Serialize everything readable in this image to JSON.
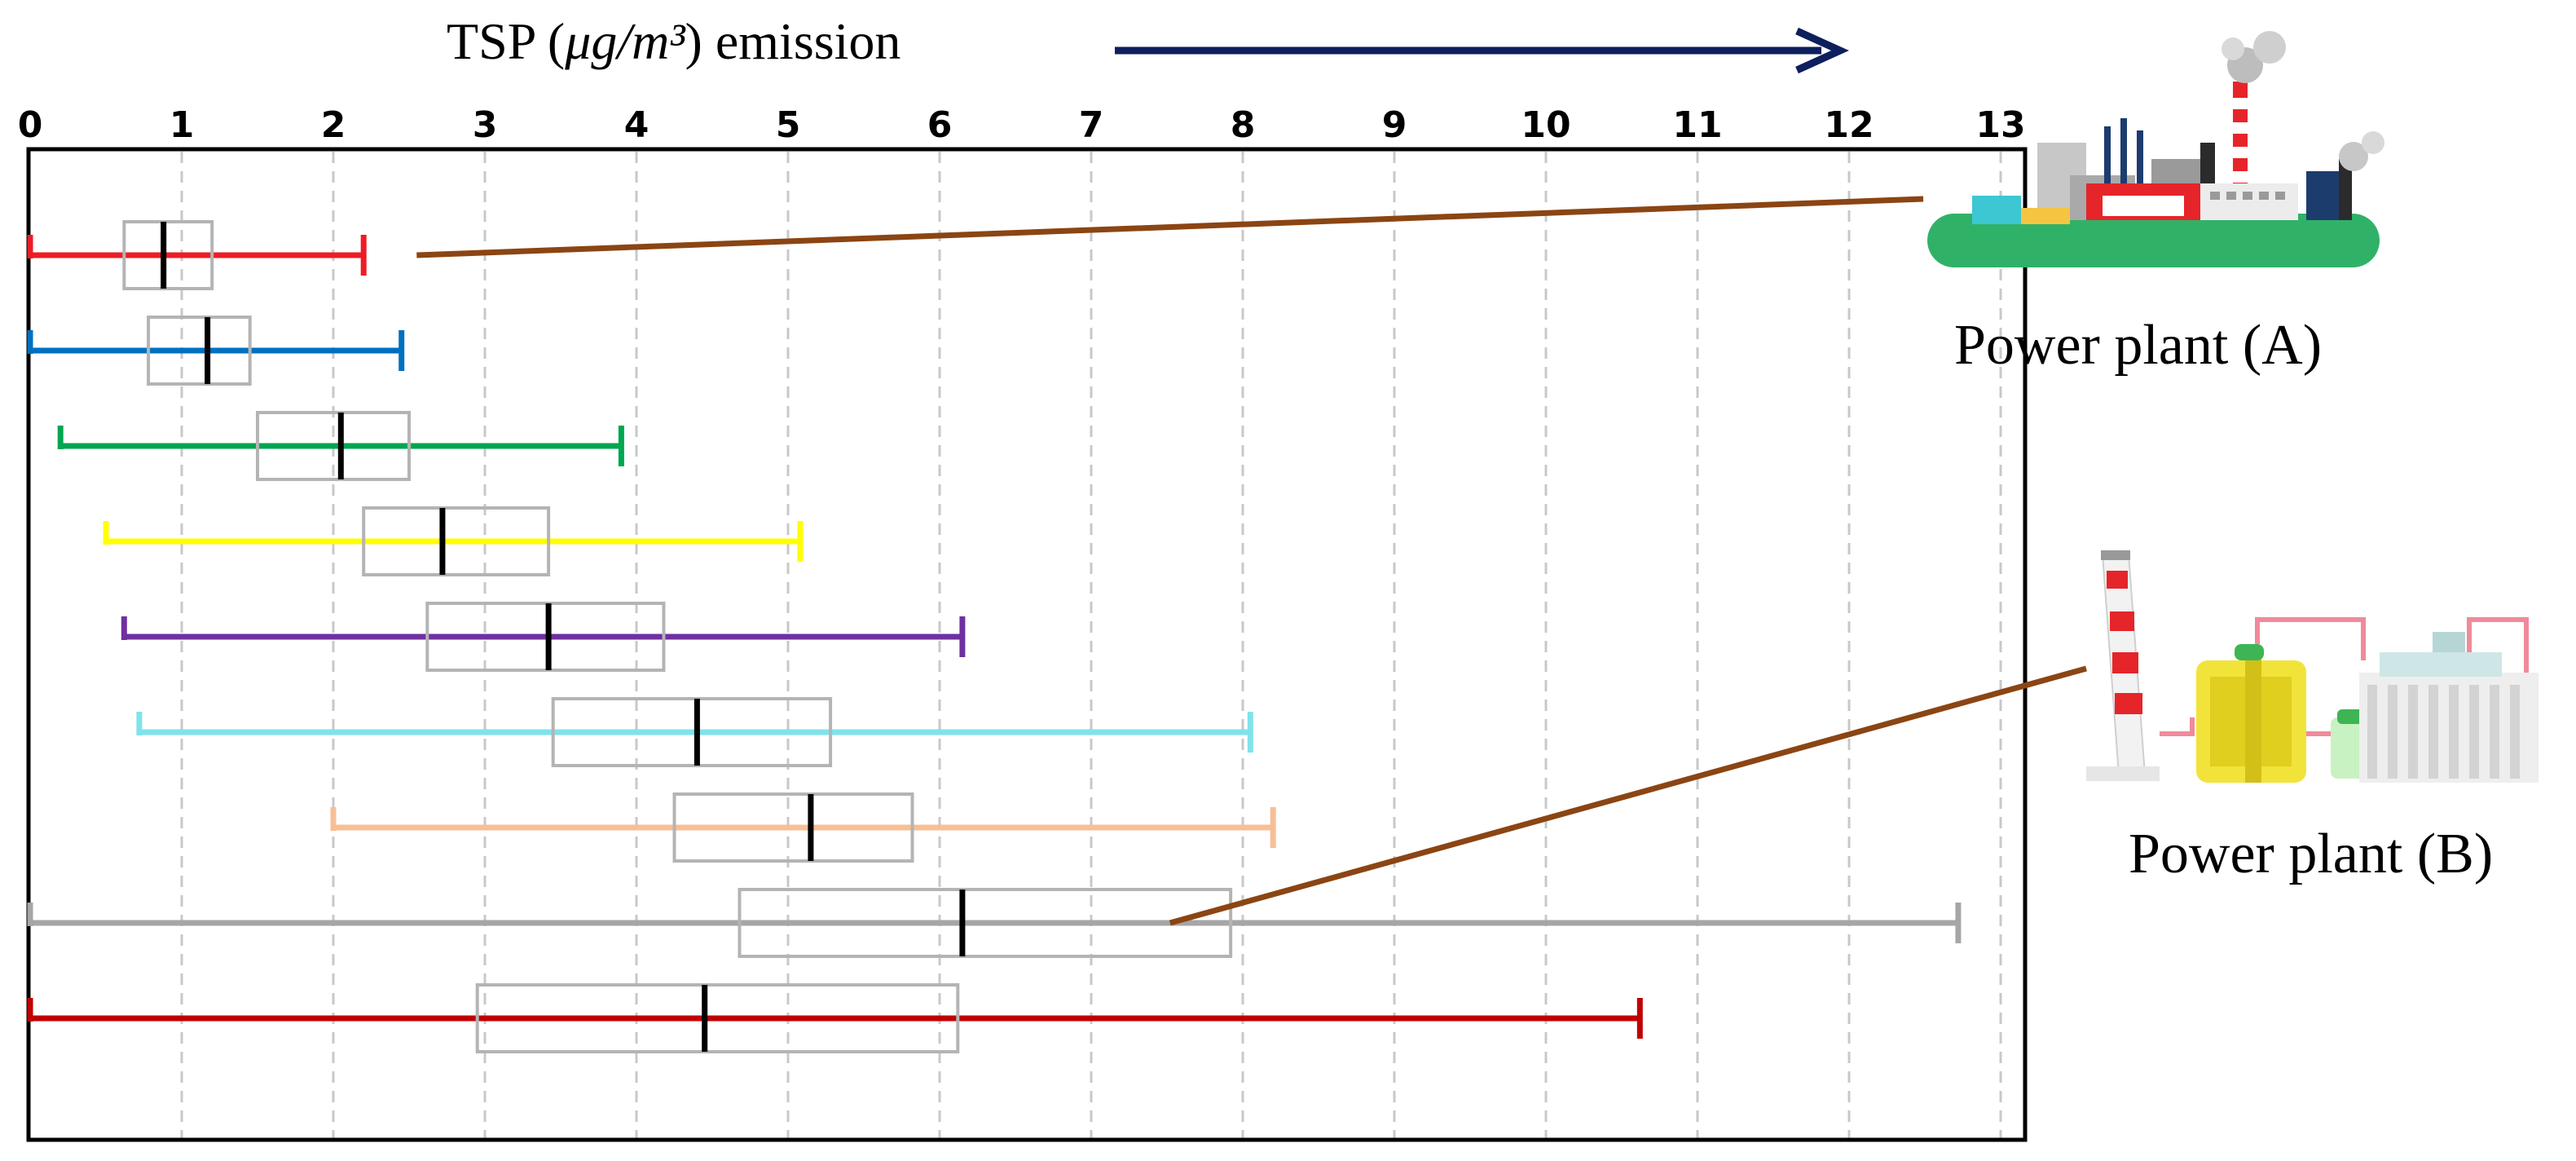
{
  "chart_data": {
    "type": "boxplot",
    "title_prefix": "TSP (",
    "title_unit": "μg/m³",
    "title_suffix": ") emission",
    "xlim": [
      0,
      13
    ],
    "xticks": [
      0,
      1,
      2,
      3,
      4,
      5,
      6,
      7,
      8,
      9,
      10,
      11,
      12,
      13
    ],
    "grid": true,
    "series": [
      {
        "min": 0.0,
        "q1": 0.62,
        "median": 0.88,
        "q3": 1.2,
        "max": 2.2,
        "color": "#ee1c25"
      },
      {
        "min": 0.0,
        "q1": 0.78,
        "median": 1.17,
        "q3": 1.45,
        "max": 2.45,
        "color": "#0070c0"
      },
      {
        "min": 0.2,
        "q1": 1.5,
        "median": 2.05,
        "q3": 2.5,
        "max": 3.9,
        "color": "#00a651"
      },
      {
        "min": 0.5,
        "q1": 2.2,
        "median": 2.72,
        "q3": 3.42,
        "max": 5.08,
        "color": "#ffff00"
      },
      {
        "min": 0.62,
        "q1": 2.62,
        "median": 3.42,
        "q3": 4.18,
        "max": 6.15,
        "color": "#7030a0"
      },
      {
        "min": 0.72,
        "q1": 3.45,
        "median": 4.4,
        "q3": 5.28,
        "max": 8.05,
        "color": "#7fe3ec"
      },
      {
        "min": 2.0,
        "q1": 4.25,
        "median": 5.15,
        "q3": 5.82,
        "max": 8.2,
        "color": "#f8bf96"
      },
      {
        "min": 0.0,
        "q1": 4.68,
        "median": 6.15,
        "q3": 7.92,
        "max": 12.72,
        "color": "#a6a6a6"
      },
      {
        "min": 0.0,
        "q1": 2.95,
        "median": 4.45,
        "q3": 6.12,
        "max": 10.62,
        "color": "#c00000"
      }
    ],
    "annotations": [
      {
        "label": "Power plant (A)",
        "points_to_series": 0,
        "from_value": 2.55
      },
      {
        "label": "Power plant (B)",
        "points_to_series": 7,
        "from_value": 7.52
      }
    ]
  },
  "colors": {
    "arrow": "#0d1f5c",
    "box": "#b4b4b4",
    "median": "#000000",
    "connector": "#8b4513",
    "grid": "#c8c8c8"
  },
  "icons": {
    "plant_a": "power-plant-a-icon",
    "plant_b": "power-plant-b-icon"
  }
}
